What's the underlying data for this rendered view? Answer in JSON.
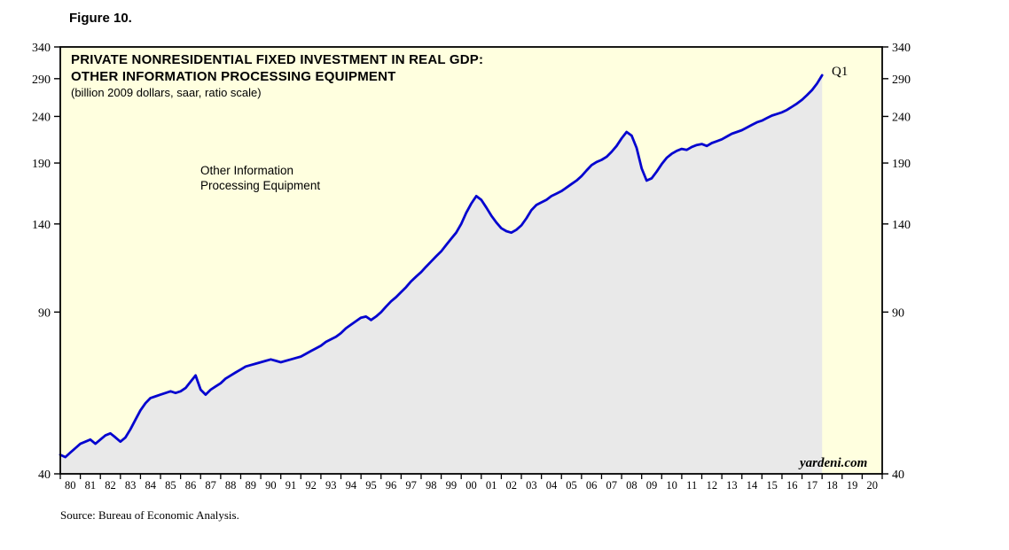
{
  "figure_label": "Figure 10.",
  "header": {
    "title_line1": "PRIVATE NONRESIDENTIAL FIXED INVESTMENT IN REAL GDP:",
    "title_line2": "OTHER INFORMATION PROCESSING EQUIPMENT",
    "subtitle": "(billion 2009 dollars, saar, ratio scale)"
  },
  "annotation": {
    "line1": "Other Information",
    "line2": "Processing Equipment"
  },
  "watermark": "yardeni.com",
  "source": "Source: Bureau of Economic Analysis.",
  "colors": {
    "line": "#0505cf",
    "area_fill": "#e9e9e9",
    "plot_bg": "#ffffdf",
    "axis": "#000000",
    "end_label": "#0505cf"
  },
  "chart_data": {
    "type": "line",
    "title": "PRIVATE NONRESIDENTIAL FIXED INVESTMENT IN REAL GDP: OTHER INFORMATION PROCESSING EQUIPMENT",
    "subtitle": "(billion 2009 dollars, saar, ratio scale)",
    "ylabel": "billion 2009 dollars, saar",
    "y_scale": "log",
    "ylim": [
      40,
      340
    ],
    "y_ticks": [
      40,
      90,
      140,
      190,
      240,
      290,
      340
    ],
    "x_axis_range": [
      1980,
      2021
    ],
    "x_tick_labels": [
      "80",
      "81",
      "82",
      "83",
      "84",
      "85",
      "86",
      "87",
      "88",
      "89",
      "90",
      "91",
      "92",
      "93",
      "94",
      "95",
      "96",
      "97",
      "98",
      "99",
      "00",
      "01",
      "02",
      "03",
      "04",
      "05",
      "06",
      "07",
      "08",
      "09",
      "10",
      "11",
      "12",
      "13",
      "14",
      "15",
      "16",
      "17",
      "18",
      "19",
      "20"
    ],
    "grid": false,
    "legend_position": "none",
    "end_point_label": "Q1",
    "series": [
      {
        "name": "Other Information Processing Equipment",
        "frequency": "quarterly",
        "start": "1980Q1",
        "end": "2018Q1",
        "values": [
          44,
          43.5,
          44.5,
          45.5,
          46.5,
          47,
          47.5,
          46.5,
          47.5,
          48.5,
          49,
          48,
          47,
          48,
          50,
          52.5,
          55,
          57,
          58.5,
          59,
          59.5,
          60,
          60.5,
          60,
          60.5,
          61.5,
          63.5,
          65.5,
          61,
          59.5,
          61,
          62,
          63,
          64.5,
          65.5,
          66.5,
          67.5,
          68.5,
          69,
          69.5,
          70,
          70.5,
          71,
          70.5,
          70,
          70.5,
          71,
          71.5,
          72,
          73,
          74,
          75,
          76,
          77.5,
          78.5,
          79.5,
          81,
          83,
          84.5,
          86,
          87.5,
          88,
          86.5,
          88,
          90,
          92.5,
          95,
          97,
          99.5,
          102,
          105,
          107.5,
          110,
          113,
          116,
          119,
          122,
          126,
          130,
          134,
          140,
          148,
          155,
          161,
          158,
          152,
          146,
          141,
          137,
          135,
          134,
          136,
          139,
          144,
          150,
          154,
          156,
          158,
          161,
          163,
          165,
          168,
          171,
          174,
          178,
          183,
          188,
          191,
          193,
          196,
          201,
          207,
          215,
          222,
          218,
          205,
          185,
          174,
          176,
          182,
          189,
          195,
          199,
          202,
          204,
          203,
          206,
          208,
          209,
          207,
          210,
          212,
          214,
          217,
          220,
          222,
          224,
          227,
          230,
          233,
          235,
          238,
          241,
          243,
          245,
          248,
          252,
          256,
          261,
          267,
          274,
          283,
          295
        ]
      }
    ]
  }
}
